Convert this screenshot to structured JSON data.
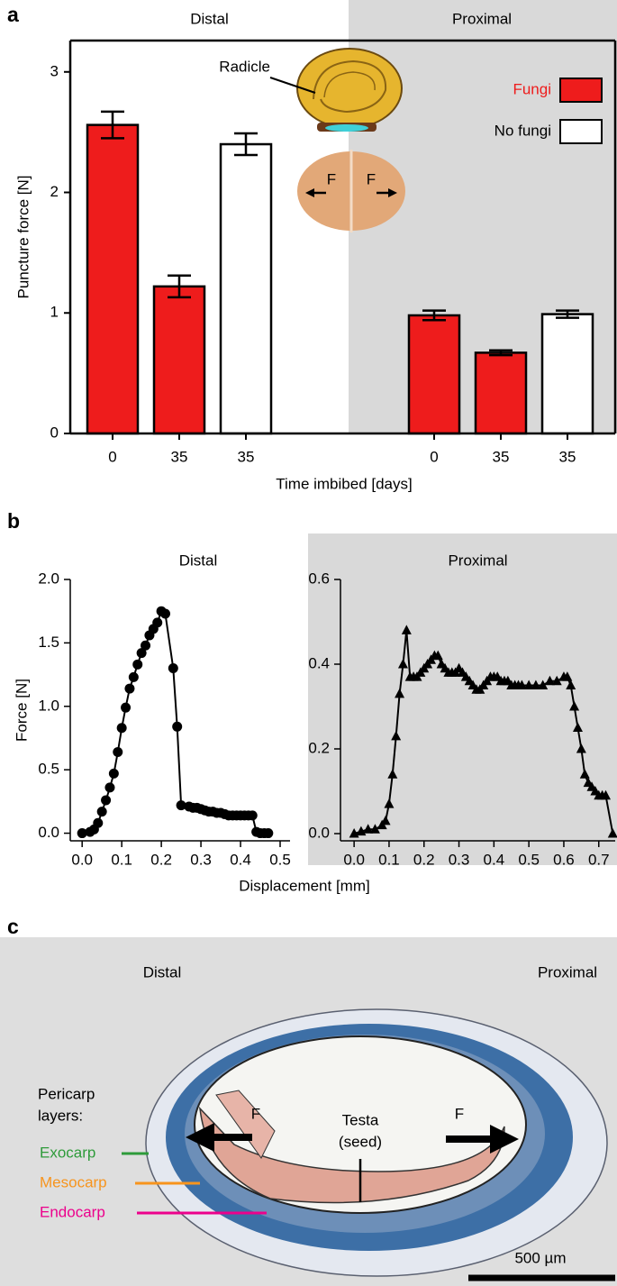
{
  "panel_labels": [
    "a",
    "b",
    "c"
  ],
  "chart_data": [
    {
      "type": "bar",
      "groups": [
        "Distal",
        "Proximal"
      ],
      "categories": [
        "0",
        "35",
        "35",
        "0",
        "35",
        "35"
      ],
      "series": [
        {
          "name": "Fungi",
          "color": "#ee1c1c",
          "label_color": "#ee1c1c",
          "values": [
            2.56,
            1.22,
            null,
            0.98,
            0.67,
            null
          ],
          "errors": [
            0.11,
            0.09,
            null,
            0.04,
            0.02,
            null
          ]
        },
        {
          "name": "No fungi",
          "color": "#ffffff",
          "label_color": "#000000",
          "values": [
            null,
            null,
            2.4,
            null,
            null,
            0.99
          ],
          "errors": [
            null,
            null,
            0.09,
            null,
            null,
            0.03
          ]
        }
      ],
      "ylabel": "Puncture force [N]",
      "xlabel": "Time imbibed [days]",
      "ylim": [
        0,
        3.26
      ],
      "yticks": [
        0,
        1,
        2,
        3
      ],
      "legend": "upper right",
      "annotations": [
        "Radicle",
        "F",
        "F"
      ]
    },
    {
      "type": "line",
      "title": "Distal",
      "marker": "circle",
      "color": "#000000",
      "ylabel": "Force [N]",
      "xlabel": "Displacement [mm]",
      "x": [
        0.0,
        0.02,
        0.03,
        0.04,
        0.05,
        0.06,
        0.07,
        0.08,
        0.09,
        0.1,
        0.11,
        0.12,
        0.13,
        0.14,
        0.15,
        0.16,
        0.17,
        0.18,
        0.19,
        0.2,
        0.21,
        0.23,
        0.24,
        0.25,
        0.27,
        0.28,
        0.29,
        0.3,
        0.31,
        0.32,
        0.33,
        0.34,
        0.35,
        0.36,
        0.37,
        0.38,
        0.39,
        0.4,
        0.41,
        0.42,
        0.43,
        0.44,
        0.45,
        0.46,
        0.47
      ],
      "values": [
        0.0,
        0.01,
        0.03,
        0.08,
        0.17,
        0.26,
        0.36,
        0.47,
        0.64,
        0.83,
        0.99,
        1.14,
        1.23,
        1.33,
        1.42,
        1.48,
        1.56,
        1.61,
        1.66,
        1.75,
        1.73,
        1.3,
        0.84,
        0.22,
        0.21,
        0.2,
        0.2,
        0.19,
        0.18,
        0.17,
        0.17,
        0.16,
        0.16,
        0.15,
        0.14,
        0.14,
        0.14,
        0.14,
        0.14,
        0.14,
        0.14,
        0.01,
        0.0,
        0.0,
        0.0
      ],
      "xlim": [
        -0.03,
        0.525
      ],
      "xticks": [
        {
          "value": 0,
          "label": "0.0"
        },
        0.1,
        0.2,
        0.3,
        0.4,
        0.5
      ],
      "ylim": [
        -0.06,
        2.0
      ],
      "yticks": [
        {
          "value": 0,
          "label": "0.0"
        },
        0.5,
        {
          "value": 1,
          "label": "1.0"
        },
        1.5,
        {
          "value": 2,
          "label": "2.0"
        }
      ]
    },
    {
      "type": "line",
      "title": "Proximal",
      "marker": "triangle",
      "color": "#000000",
      "x": [
        0.0,
        0.02,
        0.04,
        0.06,
        0.08,
        0.09,
        0.1,
        0.11,
        0.12,
        0.13,
        0.14,
        0.15,
        0.16,
        0.17,
        0.18,
        0.19,
        0.2,
        0.21,
        0.22,
        0.23,
        0.24,
        0.25,
        0.26,
        0.27,
        0.28,
        0.29,
        0.3,
        0.31,
        0.32,
        0.33,
        0.34,
        0.35,
        0.36,
        0.37,
        0.38,
        0.39,
        0.4,
        0.41,
        0.42,
        0.43,
        0.44,
        0.45,
        0.46,
        0.47,
        0.48,
        0.5,
        0.52,
        0.54,
        0.56,
        0.58,
        0.6,
        0.61,
        0.62,
        0.63,
        0.64,
        0.65,
        0.66,
        0.67,
        0.68,
        0.69,
        0.7,
        0.71,
        0.72,
        0.74
      ],
      "values": [
        0.0,
        0.005,
        0.01,
        0.01,
        0.02,
        0.03,
        0.07,
        0.14,
        0.23,
        0.33,
        0.4,
        0.48,
        0.37,
        0.37,
        0.37,
        0.38,
        0.39,
        0.4,
        0.41,
        0.42,
        0.42,
        0.4,
        0.39,
        0.38,
        0.38,
        0.38,
        0.39,
        0.38,
        0.37,
        0.36,
        0.35,
        0.34,
        0.34,
        0.35,
        0.36,
        0.37,
        0.37,
        0.37,
        0.36,
        0.36,
        0.36,
        0.35,
        0.35,
        0.35,
        0.35,
        0.35,
        0.35,
        0.35,
        0.36,
        0.36,
        0.37,
        0.37,
        0.35,
        0.3,
        0.25,
        0.2,
        0.14,
        0.12,
        0.11,
        0.1,
        0.09,
        0.09,
        0.09,
        0.0
      ],
      "xlim": [
        -0.039,
        0.747
      ],
      "xticks": [
        {
          "value": 0,
          "label": "0.0"
        },
        0.1,
        0.2,
        0.3,
        0.4,
        0.5,
        0.6,
        0.7
      ],
      "ylim": [
        -0.017,
        0.6
      ],
      "yticks": [
        {
          "value": 0,
          "label": "0.0"
        },
        0.2,
        0.4,
        0.6
      ]
    }
  ],
  "micrograph": {
    "side_labels": [
      "Distal",
      "Proximal"
    ],
    "pericarp_label": [
      "Pericarp",
      "layers:"
    ],
    "layers": [
      {
        "name": "Exocarp",
        "color": "#2e9b3a"
      },
      {
        "name": "Mesocarp",
        "color": "#f7941d"
      },
      {
        "name": "Endocarp",
        "color": "#ec008c"
      }
    ],
    "testa_label": [
      "Testa",
      "(seed)"
    ],
    "force_labels": [
      "F",
      "F"
    ],
    "scale_bar": "500 µm"
  }
}
